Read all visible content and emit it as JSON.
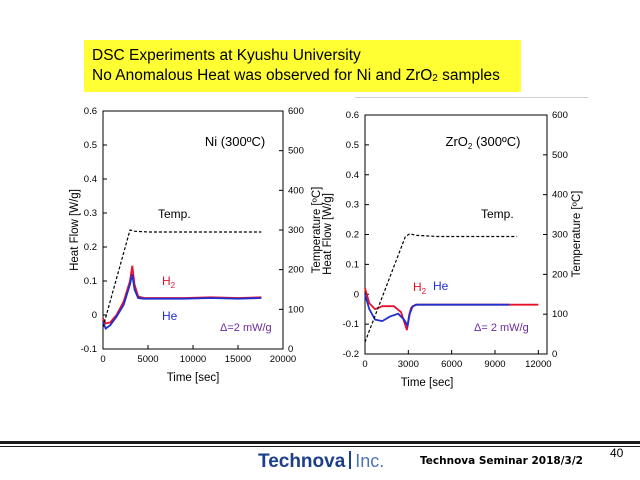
{
  "banner": {
    "line1": "DSC Experiments at Kyushu University",
    "line2_before": "No Anomalous Heat was observed for Ni and ZrO",
    "line2_sub": "2",
    "line2_after": " samples"
  },
  "chart_data": [
    {
      "type": "line",
      "title": "Ni (300ºC)",
      "xlabel": "Time [sec]",
      "ylabel": "Heat Flow [W/g]",
      "y2label": "Temperature [ºC]",
      "xlim": [
        0,
        20000
      ],
      "ylim": [
        -0.1,
        0.6
      ],
      "y2lim": [
        0,
        600
      ],
      "xticks": [
        "0",
        "5000",
        "10000",
        "15000",
        "20000"
      ],
      "xtick_values": [
        0,
        5000,
        10000,
        15000,
        20000
      ],
      "yticks": [
        "-0.1",
        "0",
        "0.1",
        "0.2",
        "0.3",
        "0.4",
        "0.5",
        "0.6"
      ],
      "ytick_values": [
        -0.1,
        0,
        0.1,
        0.2,
        0.3,
        0.4,
        0.5,
        0.6
      ],
      "y2ticks": [
        "0",
        "100",
        "200",
        "300",
        "400",
        "500",
        "600"
      ],
      "y2tick_values": [
        0,
        100,
        200,
        300,
        400,
        500,
        600
      ],
      "annotations": {
        "temp_label": "Temp.",
        "h2_label": "H",
        "h2_sub": "2",
        "he_label": "He",
        "delta": "Δ=2 mW/g"
      },
      "series": [
        {
          "name": "H2",
          "color": "#e8102a",
          "axis": "left",
          "x": [
            0,
            300,
            800,
            1500,
            2300,
            3000,
            3250,
            3500,
            3900,
            4500,
            6000,
            9000,
            12000,
            15000,
            17600
          ],
          "y": [
            -0.01,
            -0.025,
            -0.022,
            0.0,
            0.04,
            0.1,
            0.145,
            0.09,
            0.055,
            0.05,
            0.05,
            0.05,
            0.052,
            0.05,
            0.052
          ]
        },
        {
          "name": "He",
          "color": "#1f2fd0",
          "axis": "left",
          "x": [
            0,
            300,
            800,
            1500,
            2300,
            3000,
            3250,
            3500,
            3900,
            4500,
            6000,
            9000,
            12000,
            15000,
            17600
          ],
          "y": [
            -0.02,
            -0.04,
            -0.03,
            -0.005,
            0.03,
            0.09,
            0.12,
            0.075,
            0.05,
            0.048,
            0.048,
            0.048,
            0.05,
            0.048,
            0.05
          ]
        },
        {
          "name": "Temp.",
          "color": "#000000",
          "axis": "right",
          "x": [
            0,
            3000,
            3500,
            5000,
            10000,
            17600
          ],
          "y": [
            55,
            300,
            297,
            295,
            295,
            295
          ]
        }
      ]
    },
    {
      "type": "line",
      "title_main": "ZrO",
      "title_sub": "2",
      "title_rest": " (300ºC)",
      "xlabel": "Time [sec]",
      "ylabel": "Heat Flow [W/g]",
      "y2label": "Temperature [ºC]",
      "xlim": [
        0,
        12600
      ],
      "ylim": [
        -0.2,
        0.6
      ],
      "y2lim": [
        0,
        600
      ],
      "xticks": [
        "0",
        "3000",
        "6000",
        "9000",
        "12000"
      ],
      "xtick_values": [
        0,
        3000,
        6000,
        9000,
        12000
      ],
      "yticks": [
        "-0.2",
        "-0.1",
        "0",
        "0.1",
        "0.2",
        "0.3",
        "0.4",
        "0.5",
        "0.6"
      ],
      "ytick_values": [
        -0.2,
        -0.1,
        0,
        0.1,
        0.2,
        0.3,
        0.4,
        0.5,
        0.6
      ],
      "y2ticks": [
        "0",
        "100",
        "200",
        "300",
        "400",
        "500",
        "600"
      ],
      "y2tick_values": [
        0,
        100,
        200,
        300,
        400,
        500,
        600
      ],
      "annotations": {
        "temp_label": "Temp.",
        "h2_label": "H",
        "h2_sub": "2",
        "he_label": "He",
        "delta": "Δ= 2 mW/g"
      },
      "series": [
        {
          "name": "H2",
          "color": "#e8102a",
          "axis": "left",
          "x": [
            0,
            300,
            700,
            1200,
            2000,
            2500,
            2900,
            3050,
            3200,
            3500,
            4500,
            6000,
            8000,
            10000,
            12000
          ],
          "y": [
            0.02,
            -0.03,
            -0.05,
            -0.04,
            -0.04,
            -0.06,
            -0.12,
            -0.07,
            -0.045,
            -0.035,
            -0.035,
            -0.035,
            -0.035,
            -0.035,
            -0.035
          ]
        },
        {
          "name": "He",
          "color": "#1f2fd0",
          "axis": "left",
          "x": [
            0,
            300,
            700,
            1200,
            1700,
            2300,
            2700,
            2950,
            3100,
            3300,
            3600,
            4500,
            6000,
            8000,
            10000
          ],
          "y": [
            0.0,
            -0.05,
            -0.085,
            -0.09,
            -0.075,
            -0.065,
            -0.085,
            -0.105,
            -0.065,
            -0.04,
            -0.035,
            -0.035,
            -0.035,
            -0.035,
            -0.035
          ]
        },
        {
          "name": "Temp.",
          "color": "#000000",
          "axis": "right",
          "x": [
            0,
            2800,
            3100,
            3500,
            5000,
            8000,
            10500
          ],
          "y": [
            30,
            295,
            302,
            298,
            295,
            295,
            295
          ]
        }
      ]
    }
  ],
  "footer": {
    "brand": "Technova",
    "inc": "Inc.",
    "seminar": "Technova Seminar 2018/3/2",
    "page": "40"
  }
}
